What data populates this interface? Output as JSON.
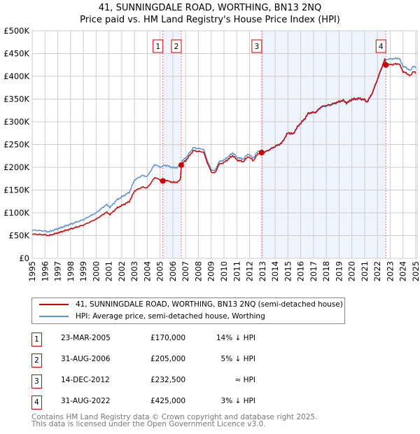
{
  "title": "41, SUNNINGDALE ROAD, WORTHING, BN13 2NQ",
  "subtitle": "Price paid vs. HM Land Registry's House Price Index (HPI)",
  "chart_data": {
    "type": "line",
    "ylim": [
      0,
      500000
    ],
    "xlim": [
      1995,
      2025
    ],
    "yticks": [
      "£0",
      "£50K",
      "£100K",
      "£150K",
      "£200K",
      "£250K",
      "£300K",
      "£350K",
      "£400K",
      "£450K",
      "£500K"
    ],
    "xticks": [
      "1995",
      "1996",
      "1997",
      "1998",
      "1999",
      "2000",
      "2001",
      "2002",
      "2003",
      "2004",
      "2005",
      "2006",
      "2007",
      "2008",
      "2009",
      "2010",
      "2011",
      "2012",
      "2013",
      "2014",
      "2015",
      "2016",
      "2017",
      "2018",
      "2019",
      "2020",
      "2021",
      "2022",
      "2023",
      "2024",
      "2025"
    ],
    "grid": true,
    "series": [
      {
        "name": "HPI: Average price, semi-detached house, Worthing",
        "color": "#5b8fd4",
        "points": [
          [
            1995,
            62
          ],
          [
            1996,
            60
          ],
          [
            1996.3,
            58
          ],
          [
            1997,
            65
          ],
          [
            1998,
            75
          ],
          [
            1999,
            85
          ],
          [
            2000,
            100
          ],
          [
            2000.8,
            118
          ],
          [
            2001.1,
            112
          ],
          [
            2001.6,
            128
          ],
          [
            2002,
            135
          ],
          [
            2002.6,
            145
          ],
          [
            2003,
            172
          ],
          [
            2003.6,
            182
          ],
          [
            2004,
            180
          ],
          [
            2004.6,
            207
          ],
          [
            2005,
            200
          ],
          [
            2005.4,
            205
          ],
          [
            2006,
            199
          ],
          [
            2006.4,
            200
          ],
          [
            2006.8,
            216
          ],
          [
            2007,
            220
          ],
          [
            2007.6,
            243
          ],
          [
            2008,
            241
          ],
          [
            2008.4,
            240
          ],
          [
            2008.7,
            215
          ],
          [
            2009,
            195
          ],
          [
            2009.3,
            192
          ],
          [
            2009.6,
            212
          ],
          [
            2010,
            216
          ],
          [
            2010.7,
            232
          ],
          [
            2011,
            222
          ],
          [
            2011.5,
            218
          ],
          [
            2011.9,
            230
          ],
          [
            2012.3,
            220
          ],
          [
            2012.7,
            238
          ],
          [
            2013,
            230
          ],
          [
            2013.5,
            237
          ],
          [
            2014,
            245
          ],
          [
            2014.5,
            252
          ],
          [
            2015,
            275
          ],
          [
            2015.4,
            272
          ],
          [
            2015.8,
            290
          ],
          [
            2016.3,
            305
          ],
          [
            2016.6,
            318
          ],
          [
            2017.2,
            320
          ],
          [
            2017.6,
            332
          ],
          [
            2018.3,
            336
          ],
          [
            2018.9,
            342
          ],
          [
            2019.3,
            346
          ],
          [
            2019.6,
            340
          ],
          [
            2020,
            348
          ],
          [
            2020.6,
            350
          ],
          [
            2021,
            347
          ],
          [
            2021.2,
            342
          ],
          [
            2021.6,
            362
          ],
          [
            2022,
            392
          ],
          [
            2022.3,
            415
          ],
          [
            2022.6,
            437
          ],
          [
            2023,
            438
          ],
          [
            2023.7,
            440
          ],
          [
            2024,
            422
          ],
          [
            2024.3,
            418
          ],
          [
            2024.6,
            412
          ],
          [
            2024.8,
            424
          ],
          [
            2025,
            418
          ]
        ]
      },
      {
        "name": "41, SUNNINGDALE ROAD, WORTHING, BN13 2NQ (semi-detached house)",
        "color": "#cc0000"
      }
    ],
    "sales": [
      {
        "n": "1",
        "x": 2005.22,
        "value": 170000
      },
      {
        "n": "2",
        "x": 2006.66,
        "value": 205000
      },
      {
        "n": "3",
        "x": 2012.95,
        "value": 232500
      },
      {
        "n": "4",
        "x": 2022.66,
        "value": 425000
      }
    ],
    "shade_color": "#eef3fc"
  },
  "legend": {
    "red": "41, SUNNINGDALE ROAD, WORTHING, BN13 2NQ (semi-detached house)",
    "blue": "HPI: Average price, semi-detached house, Worthing"
  },
  "table": [
    {
      "n": "1",
      "date": "23-MAR-2005",
      "price": "£170,000",
      "hpi": "14% ↓ HPI"
    },
    {
      "n": "2",
      "date": "31-AUG-2006",
      "price": "£205,000",
      "hpi": "5% ↓ HPI"
    },
    {
      "n": "3",
      "date": "14-DEC-2012",
      "price": "£232,500",
      "hpi": "≈ HPI"
    },
    {
      "n": "4",
      "date": "31-AUG-2022",
      "price": "£425,000",
      "hpi": "3% ↓ HPI"
    }
  ],
  "footer": [
    "Contains HM Land Registry data © Crown copyright and database right 2025.",
    "This data is licensed under the Open Government Licence v3.0."
  ]
}
